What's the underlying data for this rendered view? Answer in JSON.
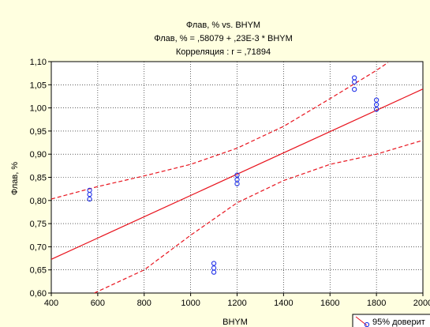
{
  "chart_data": {
    "type": "scatter",
    "title": "Флав, % vs. BHYM",
    "subtitle": "Флав, % = ,58079 + ,23E-3 * BHYM",
    "correlation": "Корреляция : r = ,71894",
    "xlabel": "BHYM",
    "ylabel": "Флав, %",
    "xlim": [
      400,
      2000
    ],
    "ylim": [
      0.6,
      1.1
    ],
    "x_ticks": [
      "400",
      "600",
      "800",
      "1000",
      "1200",
      "1400",
      "1600",
      "1800",
      "2000"
    ],
    "y_ticks": [
      "0,60",
      "0,65",
      "0,70",
      "0,75",
      "0,80",
      "0,85",
      "0,90",
      "0,95",
      "1,00",
      "1,05",
      "1,10"
    ],
    "grid": true,
    "points": [
      {
        "x": 565,
        "y": 0.822
      },
      {
        "x": 565,
        "y": 0.813
      },
      {
        "x": 565,
        "y": 0.803
      },
      {
        "x": 1100,
        "y": 0.664
      },
      {
        "x": 1100,
        "y": 0.654
      },
      {
        "x": 1100,
        "y": 0.645
      },
      {
        "x": 1200,
        "y": 0.855
      },
      {
        "x": 1200,
        "y": 0.845
      },
      {
        "x": 1200,
        "y": 0.836
      },
      {
        "x": 1705,
        "y": 1.065
      },
      {
        "x": 1705,
        "y": 1.056
      },
      {
        "x": 1705,
        "y": 1.04
      },
      {
        "x": 1800,
        "y": 1.017
      },
      {
        "x": 1800,
        "y": 1.007
      },
      {
        "x": 1800,
        "y": 0.997
      }
    ],
    "regression": {
      "intercept": 0.58079,
      "slope": 0.00023
    },
    "upper_band": [
      [
        400,
        0.803
      ],
      [
        600,
        0.83
      ],
      [
        800,
        0.853
      ],
      [
        1000,
        0.878
      ],
      [
        1200,
        0.913
      ],
      [
        1400,
        0.96
      ],
      [
        1600,
        1.02
      ],
      [
        1800,
        1.081
      ],
      [
        1850,
        1.098
      ]
    ],
    "lower_band": [
      [
        585,
        0.6
      ],
      [
        800,
        0.65
      ],
      [
        1000,
        0.725
      ],
      [
        1200,
        0.795
      ],
      [
        1400,
        0.843
      ],
      [
        1600,
        0.878
      ],
      [
        1800,
        0.9
      ],
      [
        2000,
        0.93
      ]
    ],
    "legend": {
      "label": "95% доверит",
      "placement": "bottom-right"
    },
    "colors": {
      "line": "#e8141e",
      "marker": "#2030e8",
      "background": "#ffffe0",
      "plot_background": "#ffffff",
      "grid": "#000000"
    }
  }
}
